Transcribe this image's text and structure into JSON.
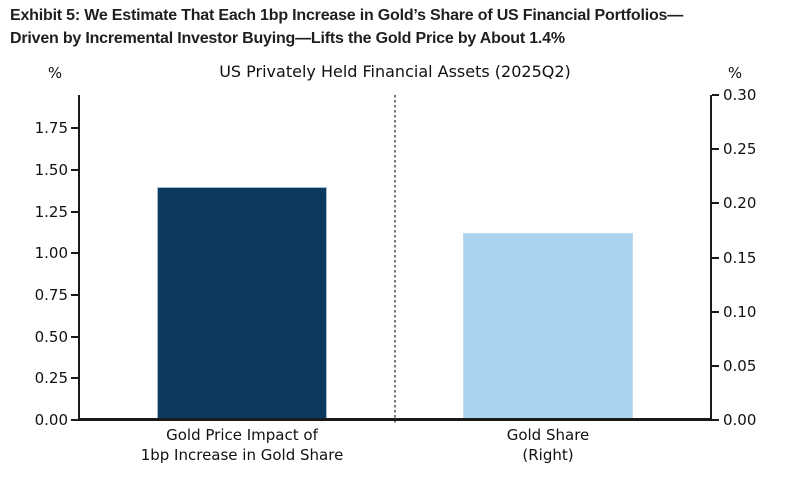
{
  "exhibit": {
    "title_line1": "Exhibit 5: We Estimate That Each 1bp Increase in Gold’s Share of US Financial Portfolios—",
    "title_line2": "Driven by Incremental Investor Buying—Lifts the Gold Price by About 1.4%"
  },
  "chart_data": {
    "type": "bar",
    "title": "US Privately Held Financial Assets (2025Q2)",
    "grid": false,
    "legend": false,
    "separator_style": "vertical-dashed-line-between-bars",
    "left_axis": {
      "unit": "%",
      "min": 0,
      "max": 1.95,
      "tick_values": [
        0,
        0.25,
        0.5,
        0.75,
        1.0,
        1.25,
        1.5,
        1.75
      ],
      "tick_labels": [
        "0.00",
        "0.25",
        "0.50",
        "0.75",
        "1.00",
        "1.25",
        "1.50",
        "1.75"
      ]
    },
    "right_axis": {
      "unit": "%",
      "min": 0,
      "max": 0.3,
      "tick_values": [
        0,
        0.05,
        0.1,
        0.15,
        0.2,
        0.25,
        0.3
      ],
      "tick_labels": [
        "0.00",
        "0.05",
        "0.10",
        "0.15",
        "0.20",
        "0.25",
        "0.30"
      ]
    },
    "bars": [
      {
        "name": "gold-price-impact",
        "label_lines": [
          "Gold Price Impact of",
          "1bp Increase in Gold Share"
        ],
        "value": 1.4,
        "axis": "left",
        "color": "#0b3a5e",
        "edge_color": "#a3bed3"
      },
      {
        "name": "gold-share",
        "label_lines": [
          "Gold Share",
          "(Right)"
        ],
        "value": 0.173,
        "axis": "right",
        "color": "#a9d3ef",
        "edge_color": "#bcdcf3"
      }
    ]
  }
}
